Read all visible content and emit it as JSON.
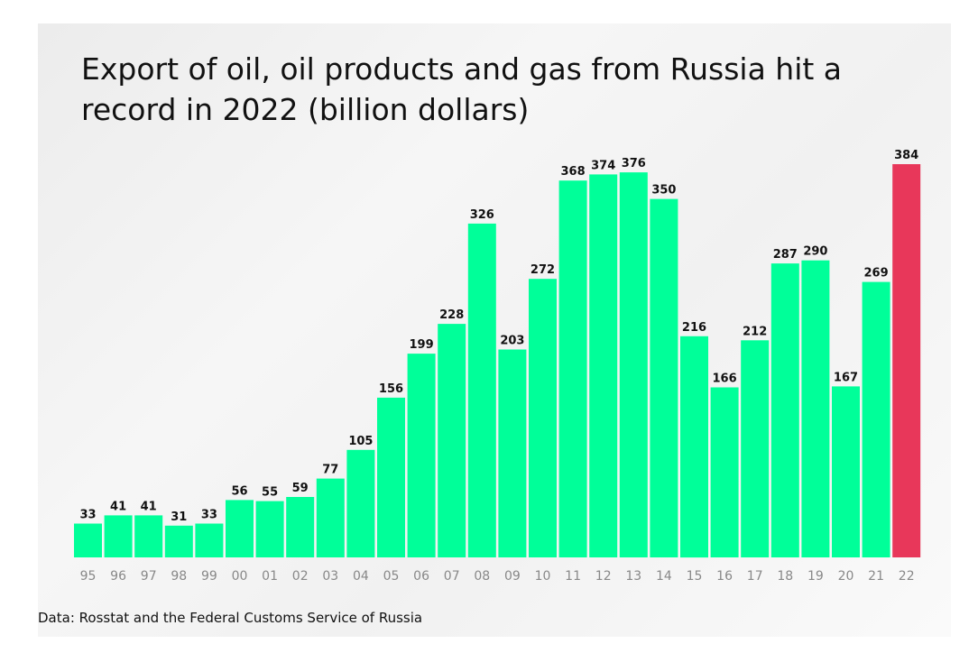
{
  "chart_data": {
    "type": "bar",
    "title": "Export of oil, oil products and gas from Russia hit a record in 2022 (billion dollars)",
    "categories": [
      "95",
      "96",
      "97",
      "98",
      "99",
      "00",
      "01",
      "02",
      "03",
      "04",
      "05",
      "06",
      "07",
      "08",
      "09",
      "10",
      "11",
      "12",
      "13",
      "14",
      "15",
      "16",
      "17",
      "18",
      "19",
      "20",
      "21",
      "22"
    ],
    "values": [
      33,
      41,
      41,
      31,
      33,
      56,
      55,
      59,
      77,
      105,
      156,
      199,
      228,
      326,
      203,
      272,
      368,
      374,
      376,
      350,
      216,
      166,
      212,
      287,
      290,
      167,
      269,
      384
    ],
    "ylim": [
      0,
      384
    ],
    "grid": false,
    "colors": {
      "bar": "#00FF99",
      "highlight": "#E8375A",
      "axis_label": "#888888",
      "value_label": "#111111"
    },
    "highlight_category": "22",
    "source": "Data: Rosstat and the Federal Customs Service of Russia"
  }
}
